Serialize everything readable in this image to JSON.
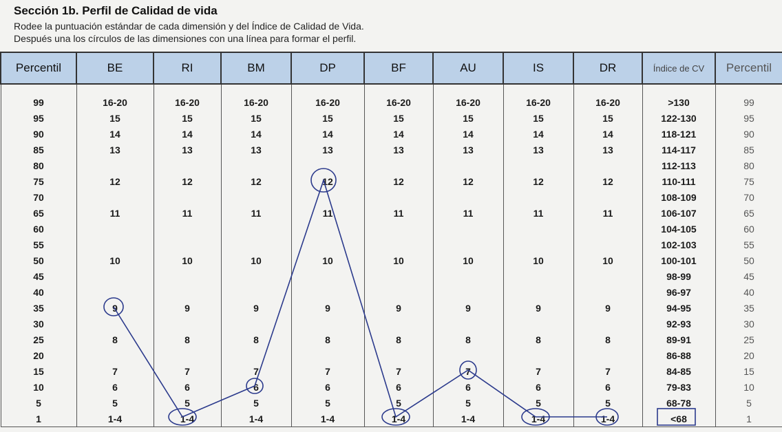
{
  "header": {
    "title": "Sección 1b. Perfil de Calidad de vida",
    "line1": "Rodee la puntuación estándar de cada dimensión y del Índice de Calidad de Vida.",
    "line2": "Después una los círculos de las dimensiones con una línea para formar el perfil."
  },
  "table": {
    "columns": [
      "Percentil",
      "BE",
      "RI",
      "BM",
      "DP",
      "BF",
      "AU",
      "IS",
      "DR",
      "Índice de CV",
      "Percentil"
    ],
    "rows": [
      [
        "99",
        "16-20",
        "16-20",
        "16-20",
        "16-20",
        "16-20",
        "16-20",
        "16-20",
        "16-20",
        ">130",
        "99"
      ],
      [
        "95",
        "15",
        "15",
        "15",
        "15",
        "15",
        "15",
        "15",
        "15",
        "122-130",
        "95"
      ],
      [
        "90",
        "14",
        "14",
        "14",
        "14",
        "14",
        "14",
        "14",
        "14",
        "118-121",
        "90"
      ],
      [
        "85",
        "13",
        "13",
        "13",
        "13",
        "13",
        "13",
        "13",
        "13",
        "114-117",
        "85"
      ],
      [
        "80",
        null,
        null,
        null,
        null,
        null,
        null,
        null,
        null,
        "112-113",
        "80"
      ],
      [
        "75",
        "12",
        "12",
        "12",
        "12",
        "12",
        "12",
        "12",
        "12",
        "110-111",
        "75"
      ],
      [
        "70",
        null,
        null,
        null,
        null,
        null,
        null,
        null,
        null,
        "108-109",
        "70"
      ],
      [
        "65",
        "11",
        "11",
        "11",
        "11",
        "11",
        "11",
        "11",
        "11",
        "106-107",
        "65"
      ],
      [
        "60",
        null,
        null,
        null,
        null,
        null,
        null,
        null,
        null,
        "104-105",
        "60"
      ],
      [
        "55",
        null,
        null,
        null,
        null,
        null,
        null,
        null,
        null,
        "102-103",
        "55"
      ],
      [
        "50",
        "10",
        "10",
        "10",
        "10",
        "10",
        "10",
        "10",
        "10",
        "100-101",
        "50"
      ],
      [
        "45",
        null,
        null,
        null,
        null,
        null,
        null,
        null,
        null,
        "98-99",
        "45"
      ],
      [
        "40",
        null,
        null,
        null,
        null,
        null,
        null,
        null,
        null,
        "96-97",
        "40"
      ],
      [
        "35",
        "9",
        "9",
        "9",
        "9",
        "9",
        "9",
        "9",
        "9",
        "94-95",
        "35"
      ],
      [
        "30",
        null,
        null,
        null,
        null,
        null,
        null,
        null,
        null,
        "92-93",
        "30"
      ],
      [
        "25",
        "8",
        "8",
        "8",
        "8",
        "8",
        "8",
        "8",
        "8",
        "89-91",
        "25"
      ],
      [
        "20",
        null,
        null,
        null,
        null,
        null,
        null,
        null,
        null,
        "86-88",
        "20"
      ],
      [
        "15",
        "7",
        "7",
        "7",
        "7",
        "7",
        "7",
        "7",
        "7",
        "84-85",
        "15"
      ],
      [
        "10",
        "6",
        "6",
        "6",
        "6",
        "6",
        "6",
        "6",
        "6",
        "79-83",
        "10"
      ],
      [
        "5",
        "5",
        "5",
        "5",
        "5",
        "5",
        "5",
        "5",
        "5",
        "68-78",
        "5"
      ],
      [
        "1",
        "1-4",
        "1-4",
        "1-4",
        "1-4",
        "1-4",
        "1-4",
        "1-4",
        "1-4",
        "<68",
        "1"
      ]
    ]
  }
}
